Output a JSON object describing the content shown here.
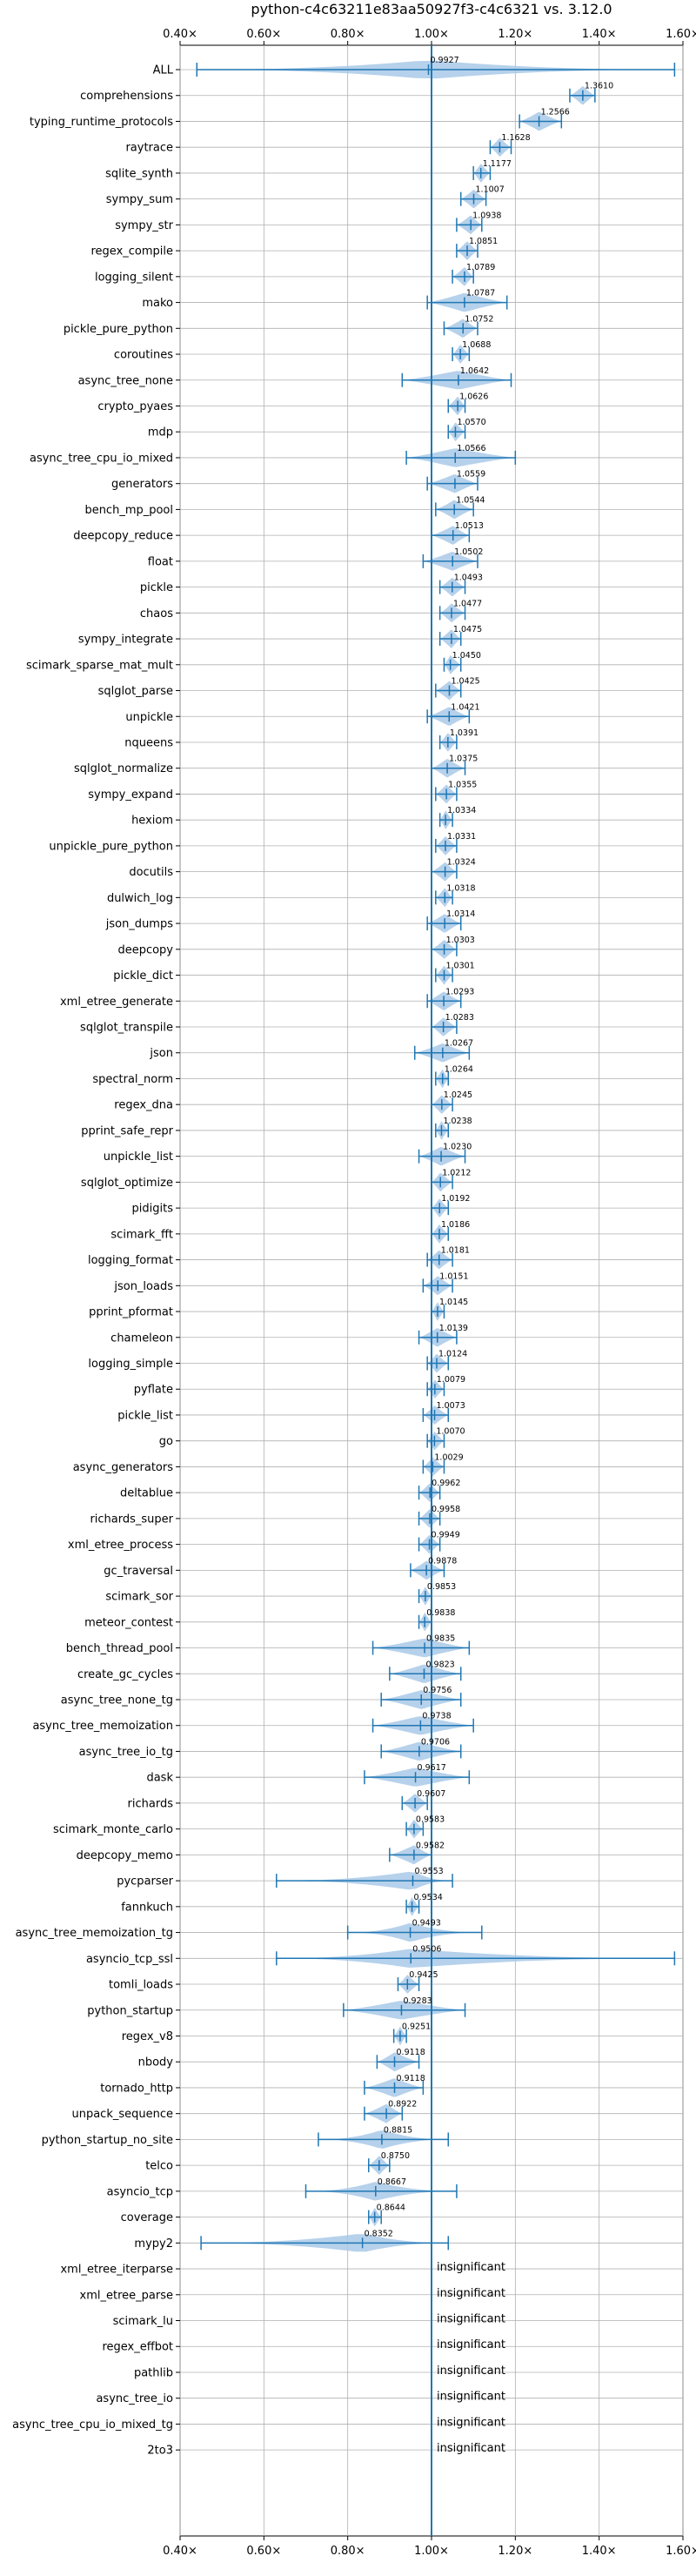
{
  "chart_data": {
    "type": "violin",
    "title": "python-c4c63211e83aa50927f3-c4c6321 vs. 3.12.0",
    "xlabel": "",
    "ylabel": "",
    "xlim": [
      0.4,
      1.6
    ],
    "x_ticks": [
      0.4,
      0.6,
      0.8,
      1.0,
      1.2,
      1.4,
      1.6
    ],
    "x_tick_labels": [
      "0.40×",
      "0.60×",
      "0.80×",
      "1.00×",
      "1.20×",
      "1.40×",
      "1.60×"
    ],
    "reference_line": 1.0,
    "grid": true,
    "colors": {
      "violin": "#a9c9e8",
      "marker": "#1f77b4",
      "ref_line": "#1f77b4"
    },
    "benchmarks": [
      {
        "name": "ALL",
        "value": 0.9927,
        "label": "0.9927",
        "min": 0.44,
        "max": 1.58
      },
      {
        "name": "comprehensions",
        "value": 1.361,
        "label": "1.3610",
        "min": 1.33,
        "max": 1.39
      },
      {
        "name": "typing_runtime_protocols",
        "value": 1.2566,
        "label": "1.2566",
        "min": 1.21,
        "max": 1.31
      },
      {
        "name": "raytrace",
        "value": 1.1628,
        "label": "1.1628",
        "min": 1.14,
        "max": 1.19
      },
      {
        "name": "sqlite_synth",
        "value": 1.1177,
        "label": "1.1177",
        "min": 1.1,
        "max": 1.14
      },
      {
        "name": "sympy_sum",
        "value": 1.1007,
        "label": "1.1007",
        "min": 1.07,
        "max": 1.13
      },
      {
        "name": "sympy_str",
        "value": 1.0938,
        "label": "1.0938",
        "min": 1.06,
        "max": 1.12
      },
      {
        "name": "regex_compile",
        "value": 1.0851,
        "label": "1.0851",
        "min": 1.06,
        "max": 1.11
      },
      {
        "name": "logging_silent",
        "value": 1.0789,
        "label": "1.0789",
        "min": 1.05,
        "max": 1.1
      },
      {
        "name": "mako",
        "value": 1.0787,
        "label": "1.0787",
        "min": 0.99,
        "max": 1.18
      },
      {
        "name": "pickle_pure_python",
        "value": 1.0752,
        "label": "1.0752",
        "min": 1.03,
        "max": 1.11
      },
      {
        "name": "coroutines",
        "value": 1.0688,
        "label": "1.0688",
        "min": 1.05,
        "max": 1.09
      },
      {
        "name": "async_tree_none",
        "value": 1.0642,
        "label": "1.0642",
        "min": 0.93,
        "max": 1.19
      },
      {
        "name": "crypto_pyaes",
        "value": 1.0626,
        "label": "1.0626",
        "min": 1.04,
        "max": 1.08
      },
      {
        "name": "mdp",
        "value": 1.057,
        "label": "1.0570",
        "min": 1.04,
        "max": 1.08
      },
      {
        "name": "async_tree_cpu_io_mixed",
        "value": 1.0566,
        "label": "1.0566",
        "min": 0.94,
        "max": 1.2
      },
      {
        "name": "generators",
        "value": 1.0559,
        "label": "1.0559",
        "min": 0.99,
        "max": 1.11
      },
      {
        "name": "bench_mp_pool",
        "value": 1.0544,
        "label": "1.0544",
        "min": 1.01,
        "max": 1.1
      },
      {
        "name": "deepcopy_reduce",
        "value": 1.0513,
        "label": "1.0513",
        "min": 1.0,
        "max": 1.09
      },
      {
        "name": "float",
        "value": 1.0502,
        "label": "1.0502",
        "min": 0.98,
        "max": 1.11
      },
      {
        "name": "pickle",
        "value": 1.0493,
        "label": "1.0493",
        "min": 1.02,
        "max": 1.08
      },
      {
        "name": "chaos",
        "value": 1.0477,
        "label": "1.0477",
        "min": 1.02,
        "max": 1.08
      },
      {
        "name": "sympy_integrate",
        "value": 1.0475,
        "label": "1.0475",
        "min": 1.02,
        "max": 1.07
      },
      {
        "name": "scimark_sparse_mat_mult",
        "value": 1.045,
        "label": "1.0450",
        "min": 1.03,
        "max": 1.07
      },
      {
        "name": "sqlglot_parse",
        "value": 1.0425,
        "label": "1.0425",
        "min": 1.01,
        "max": 1.07
      },
      {
        "name": "unpickle",
        "value": 1.0421,
        "label": "1.0421",
        "min": 0.99,
        "max": 1.09
      },
      {
        "name": "nqueens",
        "value": 1.0391,
        "label": "1.0391",
        "min": 1.02,
        "max": 1.06
      },
      {
        "name": "sqlglot_normalize",
        "value": 1.0375,
        "label": "1.0375",
        "min": 1.0,
        "max": 1.08
      },
      {
        "name": "sympy_expand",
        "value": 1.0355,
        "label": "1.0355",
        "min": 1.01,
        "max": 1.06
      },
      {
        "name": "hexiom",
        "value": 1.0334,
        "label": "1.0334",
        "min": 1.02,
        "max": 1.05
      },
      {
        "name": "unpickle_pure_python",
        "value": 1.0331,
        "label": "1.0331",
        "min": 1.01,
        "max": 1.06
      },
      {
        "name": "docutils",
        "value": 1.0324,
        "label": "1.0324",
        "min": 1.0,
        "max": 1.06
      },
      {
        "name": "dulwich_log",
        "value": 1.0318,
        "label": "1.0318",
        "min": 1.01,
        "max": 1.05
      },
      {
        "name": "json_dumps",
        "value": 1.0314,
        "label": "1.0314",
        "min": 0.99,
        "max": 1.07
      },
      {
        "name": "deepcopy",
        "value": 1.0303,
        "label": "1.0303",
        "min": 1.0,
        "max": 1.06
      },
      {
        "name": "pickle_dict",
        "value": 1.0301,
        "label": "1.0301",
        "min": 1.01,
        "max": 1.05
      },
      {
        "name": "xml_etree_generate",
        "value": 1.0293,
        "label": "1.0293",
        "min": 0.99,
        "max": 1.07
      },
      {
        "name": "sqlglot_transpile",
        "value": 1.0283,
        "label": "1.0283",
        "min": 1.0,
        "max": 1.06
      },
      {
        "name": "json",
        "value": 1.0267,
        "label": "1.0267",
        "min": 0.96,
        "max": 1.09
      },
      {
        "name": "spectral_norm",
        "value": 1.0264,
        "label": "1.0264",
        "min": 1.01,
        "max": 1.04
      },
      {
        "name": "regex_dna",
        "value": 1.0245,
        "label": "1.0245",
        "min": 1.0,
        "max": 1.05
      },
      {
        "name": "pprint_safe_repr",
        "value": 1.0238,
        "label": "1.0238",
        "min": 1.01,
        "max": 1.04
      },
      {
        "name": "unpickle_list",
        "value": 1.023,
        "label": "1.0230",
        "min": 0.97,
        "max": 1.08
      },
      {
        "name": "sqlglot_optimize",
        "value": 1.0212,
        "label": "1.0212",
        "min": 1.0,
        "max": 1.05
      },
      {
        "name": "pidigits",
        "value": 1.0192,
        "label": "1.0192",
        "min": 1.0,
        "max": 1.04
      },
      {
        "name": "scimark_fft",
        "value": 1.0186,
        "label": "1.0186",
        "min": 1.0,
        "max": 1.04
      },
      {
        "name": "logging_format",
        "value": 1.0181,
        "label": "1.0181",
        "min": 0.99,
        "max": 1.05
      },
      {
        "name": "json_loads",
        "value": 1.0151,
        "label": "1.0151",
        "min": 0.98,
        "max": 1.05
      },
      {
        "name": "pprint_pformat",
        "value": 1.0145,
        "label": "1.0145",
        "min": 1.0,
        "max": 1.03
      },
      {
        "name": "chameleon",
        "value": 1.0139,
        "label": "1.0139",
        "min": 0.97,
        "max": 1.06
      },
      {
        "name": "logging_simple",
        "value": 1.0124,
        "label": "1.0124",
        "min": 0.99,
        "max": 1.04
      },
      {
        "name": "pyflate",
        "value": 1.0079,
        "label": "1.0079",
        "min": 0.99,
        "max": 1.03
      },
      {
        "name": "pickle_list",
        "value": 1.0073,
        "label": "1.0073",
        "min": 0.98,
        "max": 1.04
      },
      {
        "name": "go",
        "value": 1.007,
        "label": "1.0070",
        "min": 0.99,
        "max": 1.03
      },
      {
        "name": "async_generators",
        "value": 1.0029,
        "label": "1.0029",
        "min": 0.98,
        "max": 1.03
      },
      {
        "name": "deltablue",
        "value": 0.9962,
        "label": "0.9962",
        "min": 0.97,
        "max": 1.02
      },
      {
        "name": "richards_super",
        "value": 0.9958,
        "label": "0.9958",
        "min": 0.97,
        "max": 1.02
      },
      {
        "name": "xml_etree_process",
        "value": 0.9949,
        "label": "0.9949",
        "min": 0.97,
        "max": 1.02
      },
      {
        "name": "gc_traversal",
        "value": 0.9878,
        "label": "0.9878",
        "min": 0.95,
        "max": 1.03
      },
      {
        "name": "scimark_sor",
        "value": 0.9853,
        "label": "0.9853",
        "min": 0.97,
        "max": 1.0
      },
      {
        "name": "meteor_contest",
        "value": 0.9838,
        "label": "0.9838",
        "min": 0.97,
        "max": 1.0
      },
      {
        "name": "bench_thread_pool",
        "value": 0.9835,
        "label": "0.9835",
        "min": 0.86,
        "max": 1.09
      },
      {
        "name": "create_gc_cycles",
        "value": 0.9823,
        "label": "0.9823",
        "min": 0.9,
        "max": 1.07
      },
      {
        "name": "async_tree_none_tg",
        "value": 0.9756,
        "label": "0.9756",
        "min": 0.88,
        "max": 1.07
      },
      {
        "name": "async_tree_memoization",
        "value": 0.9738,
        "label": "0.9738",
        "min": 0.86,
        "max": 1.1
      },
      {
        "name": "async_tree_io_tg",
        "value": 0.9706,
        "label": "0.9706",
        "min": 0.88,
        "max": 1.07
      },
      {
        "name": "dask",
        "value": 0.9617,
        "label": "0.9617",
        "min": 0.84,
        "max": 1.09
      },
      {
        "name": "richards",
        "value": 0.9607,
        "label": "0.9607",
        "min": 0.93,
        "max": 0.99
      },
      {
        "name": "scimark_monte_carlo",
        "value": 0.9583,
        "label": "0.9583",
        "min": 0.94,
        "max": 0.98
      },
      {
        "name": "deepcopy_memo",
        "value": 0.9582,
        "label": "0.9582",
        "min": 0.9,
        "max": 1.0
      },
      {
        "name": "pycparser",
        "value": 0.9553,
        "label": "0.9553",
        "min": 0.63,
        "max": 1.05
      },
      {
        "name": "fannkuch",
        "value": 0.9534,
        "label": "0.9534",
        "min": 0.94,
        "max": 0.97
      },
      {
        "name": "async_tree_memoization_tg",
        "value": 0.9493,
        "label": "0.9493",
        "min": 0.8,
        "max": 1.12
      },
      {
        "name": "asyncio_tcp_ssl",
        "value": 0.9506,
        "label": "0.9506",
        "min": 0.63,
        "max": 1.58
      },
      {
        "name": "tomli_loads",
        "value": 0.9425,
        "label": "0.9425",
        "min": 0.92,
        "max": 0.97
      },
      {
        "name": "python_startup",
        "value": 0.9283,
        "label": "0.9283",
        "min": 0.79,
        "max": 1.08
      },
      {
        "name": "regex_v8",
        "value": 0.9251,
        "label": "0.9251",
        "min": 0.91,
        "max": 0.94
      },
      {
        "name": "nbody",
        "value": 0.9118,
        "label": "0.9118",
        "min": 0.87,
        "max": 0.97
      },
      {
        "name": "tornado_http",
        "value": 0.9118,
        "label": "0.9118",
        "min": 0.84,
        "max": 0.98
      },
      {
        "name": "unpack_sequence",
        "value": 0.8922,
        "label": "0.8922",
        "min": 0.84,
        "max": 0.93
      },
      {
        "name": "python_startup_no_site",
        "value": 0.8815,
        "label": "0.8815",
        "min": 0.73,
        "max": 1.04
      },
      {
        "name": "telco",
        "value": 0.875,
        "label": "0.8750",
        "min": 0.85,
        "max": 0.9
      },
      {
        "name": "asyncio_tcp",
        "value": 0.8667,
        "label": "0.8667",
        "min": 0.7,
        "max": 1.06
      },
      {
        "name": "coverage",
        "value": 0.8644,
        "label": "0.8644",
        "min": 0.85,
        "max": 0.88
      },
      {
        "name": "mypy2",
        "value": 0.8352,
        "label": "0.8352",
        "min": 0.45,
        "max": 1.04
      },
      {
        "name": "xml_etree_iterparse",
        "value": null,
        "label": "insignificant"
      },
      {
        "name": "xml_etree_parse",
        "value": null,
        "label": "insignificant"
      },
      {
        "name": "scimark_lu",
        "value": null,
        "label": "insignificant"
      },
      {
        "name": "regex_effbot",
        "value": null,
        "label": "insignificant"
      },
      {
        "name": "pathlib",
        "value": null,
        "label": "insignificant"
      },
      {
        "name": "async_tree_io",
        "value": null,
        "label": "insignificant"
      },
      {
        "name": "async_tree_cpu_io_mixed_tg",
        "value": null,
        "label": "insignificant"
      },
      {
        "name": "2to3",
        "value": null,
        "label": "insignificant"
      }
    ]
  }
}
